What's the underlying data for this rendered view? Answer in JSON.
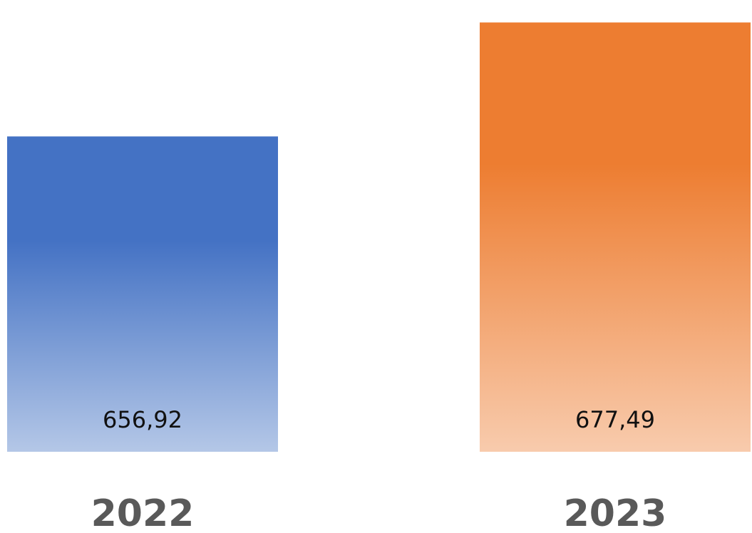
{
  "chart_data": {
    "type": "bar",
    "title": "",
    "xlabel": "",
    "ylabel": "",
    "categories": [
      "2022",
      "2023"
    ],
    "values": [
      656.92,
      677.49
    ],
    "value_labels": [
      "656,92",
      "677,49"
    ],
    "ylim": [
      600,
      680
    ],
    "grid": false,
    "legend": "none",
    "colors": {
      "2022": {
        "top": "#4472C4",
        "bottom": "#B4C7E7"
      },
      "2023": {
        "top": "#ED7D31",
        "bottom": "#F8CBAD"
      }
    }
  }
}
